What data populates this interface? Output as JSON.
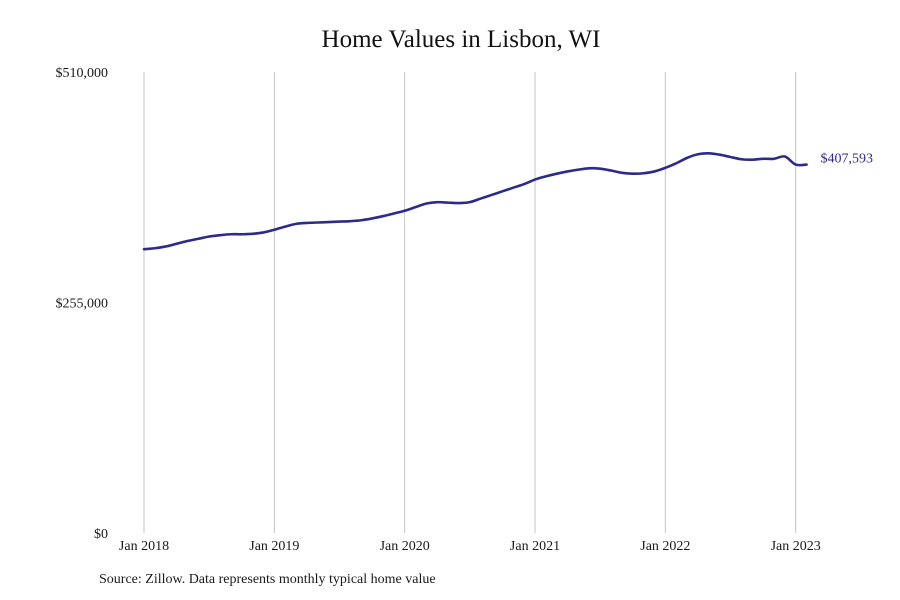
{
  "chart_data": {
    "type": "line",
    "title": "Home Values in Lisbon, WI",
    "xlabel": "",
    "ylabel": "",
    "ylim": [
      0,
      510000
    ],
    "y_ticks": [
      {
        "value": 0,
        "label": "$0"
      },
      {
        "value": 255000,
        "label": "$255,000"
      },
      {
        "value": 510000,
        "label": "$510,000"
      }
    ],
    "x_ticks": [
      {
        "value": 2018.0,
        "label": "Jan 2018"
      },
      {
        "value": 2019.0,
        "label": "Jan 2019"
      },
      {
        "value": 2020.0,
        "label": "Jan 2020"
      },
      {
        "value": 2021.0,
        "label": "Jan 2021"
      },
      {
        "value": 2022.0,
        "label": "Jan 2022"
      },
      {
        "value": 2023.0,
        "label": "Jan 2023"
      }
    ],
    "xlim": [
      2018.0,
      2023.083
    ],
    "grid": {
      "vertical": true,
      "horizontal": false
    },
    "line_color": "#2e2a8c",
    "grid_color": "#c4c4c4",
    "series": [
      {
        "x": [
          2018.0,
          2018.083,
          2018.167,
          2018.25,
          2018.333,
          2018.417,
          2018.5,
          2018.583,
          2018.667,
          2018.75,
          2018.833,
          2018.917,
          2019.0,
          2019.083,
          2019.167,
          2019.25,
          2019.333,
          2019.417,
          2019.5,
          2019.583,
          2019.667,
          2019.75,
          2019.833,
          2019.917,
          2020.0,
          2020.083,
          2020.167,
          2020.25,
          2020.333,
          2020.417,
          2020.5,
          2020.583,
          2020.667,
          2020.75,
          2020.833,
          2020.917,
          2021.0,
          2021.083,
          2021.167,
          2021.25,
          2021.333,
          2021.417,
          2021.5,
          2021.583,
          2021.667,
          2021.75,
          2021.833,
          2021.917,
          2022.0,
          2022.083,
          2022.167,
          2022.25,
          2022.333,
          2022.417,
          2022.5,
          2022.583,
          2022.667,
          2022.75,
          2022.833,
          2022.917,
          2023.0,
          2023.083
        ],
        "values": [
          314000,
          315000,
          317000,
          320000,
          323000,
          325500,
          328000,
          329500,
          330500,
          330500,
          331000,
          332500,
          335500,
          339000,
          342000,
          343000,
          343500,
          344000,
          344500,
          345000,
          346000,
          348000,
          350500,
          353500,
          356500,
          360500,
          364500,
          366000,
          365500,
          365000,
          366000,
          370000,
          374000,
          378000,
          382000,
          386000,
          391000,
          394500,
          397500,
          400000,
          402000,
          403500,
          403000,
          401000,
          398500,
          397500,
          398000,
          400000,
          404000,
          409000,
          415000,
          419000,
          420000,
          418500,
          416000,
          413500,
          413000,
          414000,
          414000,
          416500,
          407593,
          407593
        ]
      }
    ],
    "end_value_label": "$407,593"
  },
  "source": "Source: Zillow. Data represents monthly typical home value"
}
